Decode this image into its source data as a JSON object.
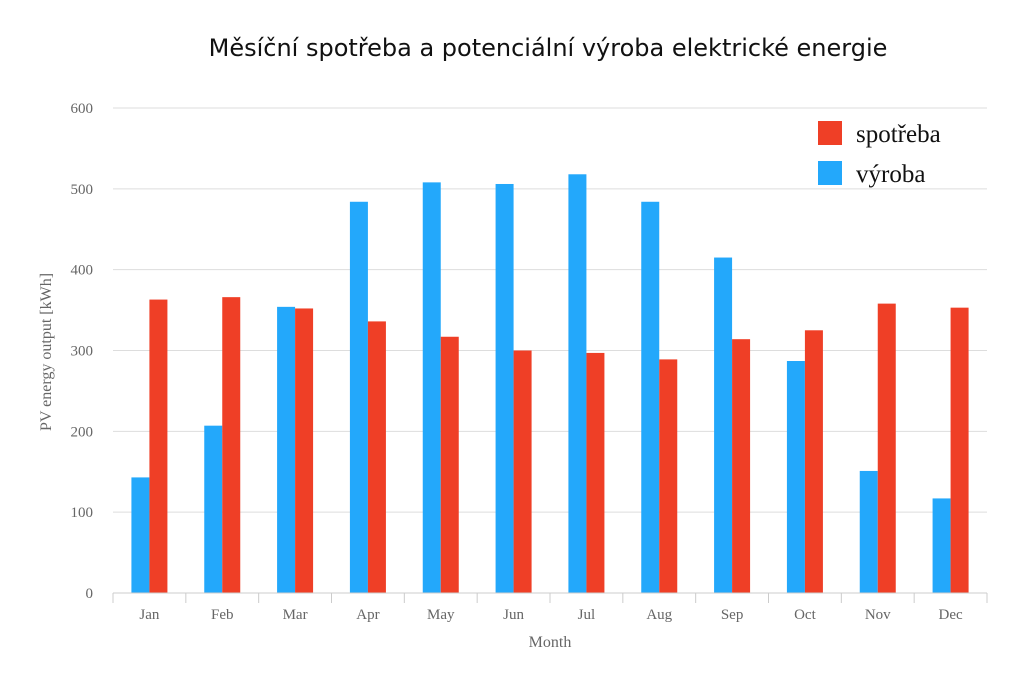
{
  "chart_data": {
    "type": "bar",
    "title": "Měsíční spotřeba a potenciální výroba elektrické energie",
    "xlabel": "Month",
    "ylabel": "PV energy output [kWh]",
    "ylim": [
      0,
      600
    ],
    "yticks": [
      0,
      100,
      200,
      300,
      400,
      500,
      600
    ],
    "grid": true,
    "legend_position": "top-right",
    "categories": [
      "Jan",
      "Feb",
      "Mar",
      "Apr",
      "May",
      "Jun",
      "Jul",
      "Aug",
      "Sep",
      "Oct",
      "Nov",
      "Dec"
    ],
    "series": [
      {
        "name": "výroba",
        "color": "#23a8fb",
        "values": [
          143,
          207,
          354,
          484,
          508,
          506,
          518,
          484,
          415,
          287,
          151,
          117
        ]
      },
      {
        "name": "spotřeba",
        "color": "#ef3f26",
        "values": [
          363,
          366,
          352,
          336,
          317,
          300,
          297,
          289,
          314,
          325,
          358,
          353
        ]
      }
    ],
    "legend_order": [
      "spotřeba",
      "výroba"
    ]
  }
}
